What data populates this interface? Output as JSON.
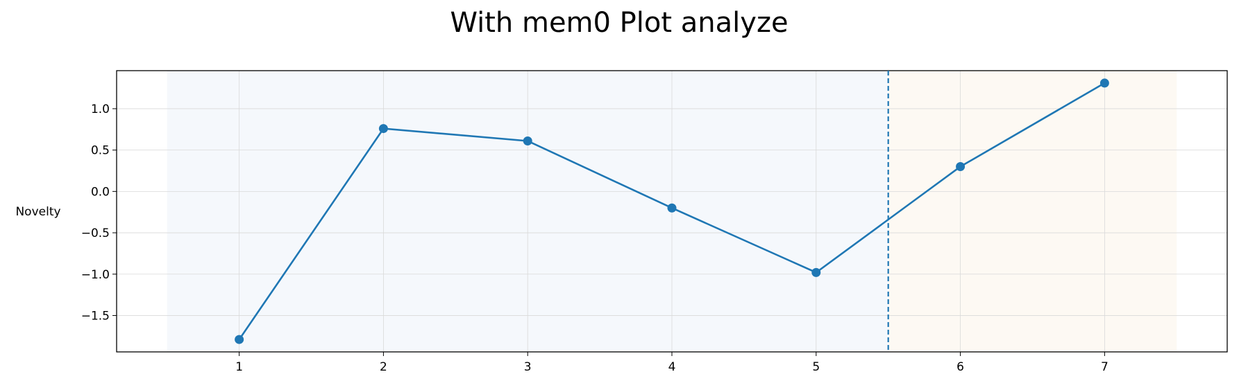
{
  "chart_data": {
    "type": "line",
    "title": "With mem0 Plot analyze",
    "xlabel": "",
    "ylabel": "Novelty",
    "x": [
      1,
      2,
      3,
      4,
      5,
      6,
      7
    ],
    "series": [
      {
        "values": [
          -1.79,
          0.76,
          0.61,
          -0.2,
          -0.98,
          0.3,
          1.31
        ],
        "color": "#1f77b4",
        "marker": "circle"
      }
    ],
    "xticks": [
      "1",
      "2",
      "3",
      "4",
      "5",
      "6",
      "7"
    ],
    "yticks": [
      "−1.5",
      "−1.0",
      "−0.5",
      "0.0",
      "0.5",
      "1.0"
    ],
    "ytick_values": [
      -1.5,
      -1.0,
      -0.5,
      0.0,
      0.5,
      1.0
    ],
    "xlim": [
      0.15,
      7.85
    ],
    "ylim": [
      -1.94,
      1.46
    ],
    "grid": true,
    "vline": {
      "x": 5.5,
      "style": "dashed",
      "color": "#1f77b4"
    },
    "shaded_regions": [
      {
        "x_start": 0.5,
        "x_end": 5.5,
        "color": "#f5f8fc"
      },
      {
        "x_start": 5.5,
        "x_end": 7.5,
        "color": "#fdf9f3"
      }
    ]
  }
}
